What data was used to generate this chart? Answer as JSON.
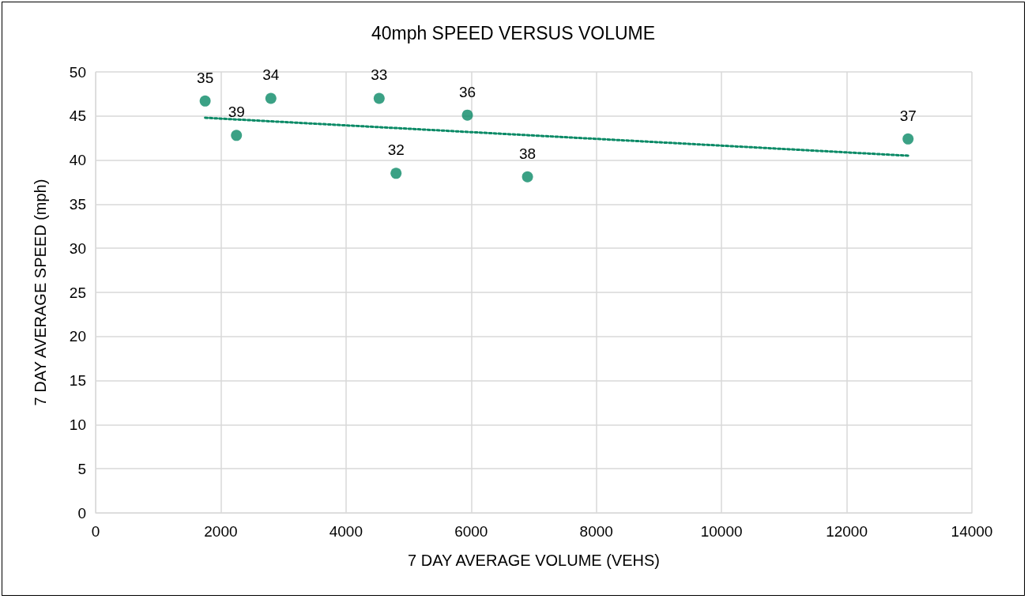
{
  "chart_data": {
    "type": "scatter",
    "title": "40mph SPEED VERSUS VOLUME",
    "xlabel": "7 DAY AVERAGE VOLUME (VEHS)",
    "ylabel": "7 DAY AVERAGE SPEED (mph)",
    "x": [
      1750,
      2250,
      2800,
      4530,
      4800,
      5940,
      6900,
      12980
    ],
    "series": [
      {
        "color": "#0a8a66",
        "marker": "circle",
        "values": [
          46.7,
          42.8,
          47.0,
          47.0,
          38.5,
          45.1,
          38.1,
          42.4
        ]
      },
      {
        "type": "line",
        "color": "#0a8a66",
        "line_style": "dotted",
        "marker": "none",
        "x": [
          1750,
          12980
        ],
        "values": [
          44.8,
          40.5
        ]
      }
    ],
    "annotations": [
      {
        "text": "35",
        "x": 1750,
        "y": 46.7
      },
      {
        "text": "39",
        "x": 2250,
        "y": 42.8
      },
      {
        "text": "34",
        "x": 2800,
        "y": 47.0
      },
      {
        "text": "33",
        "x": 4530,
        "y": 47.0
      },
      {
        "text": "32",
        "x": 4800,
        "y": 38.5
      },
      {
        "text": "36",
        "x": 5940,
        "y": 45.1
      },
      {
        "text": "38",
        "x": 6900,
        "y": 38.1
      },
      {
        "text": "37",
        "x": 12980,
        "y": 42.4
      }
    ],
    "xlim": [
      0,
      14000
    ],
    "xticks": [
      0,
      2000,
      4000,
      6000,
      8000,
      10000,
      12000,
      14000
    ],
    "ylim": [
      0,
      50
    ],
    "yticks": [
      0,
      5,
      10,
      15,
      20,
      25,
      30,
      35,
      40,
      45,
      50
    ],
    "grid": true
  }
}
